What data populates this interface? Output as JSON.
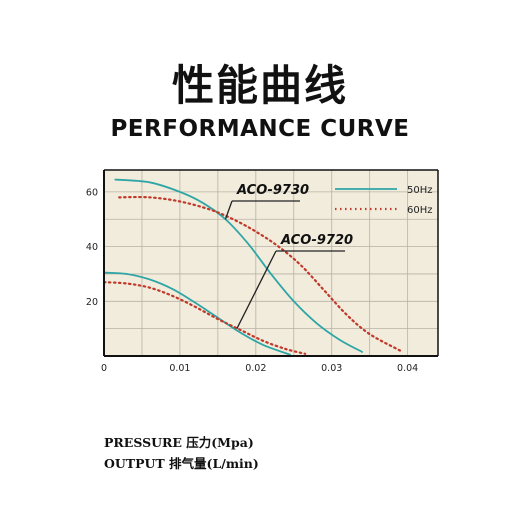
{
  "heading": {
    "title_cn": "性能曲线",
    "title_en": "PERFORMANCE CURVE"
  },
  "footer": {
    "y_label": "PRESSURE 压力(Mpa)",
    "x_label": "OUTPUT 排气量(L/min)"
  },
  "colors": {
    "panel_bg": "#f2ecdc",
    "grid": "#b8b2a6",
    "line_50hz": "#2fa6a6",
    "line_60hz": "#c0392b",
    "frame": "#111111"
  },
  "chart_data": {
    "type": "line",
    "title": "",
    "xlabel": "OUTPUT 排气量(L/min)",
    "ylabel": "PRESSURE 压力(Mpa)",
    "xlim": [
      0,
      0.044
    ],
    "ylim": [
      0,
      68
    ],
    "x_ticks": [
      0,
      0.01,
      0.02,
      0.03,
      0.04
    ],
    "x_tick_labels": [
      "0",
      "0.01",
      "0.02",
      "0.03",
      "0.04"
    ],
    "y_ticks": [
      20,
      40,
      60
    ],
    "y_tick_labels": [
      "20",
      "40",
      "60"
    ],
    "grid": true,
    "legend_position": "top-right",
    "legend": [
      {
        "label": "50Hz",
        "style": "solid",
        "color": "#2fa6a6"
      },
      {
        "label": "60Hz",
        "style": "dotted",
        "color": "#c0392b"
      }
    ],
    "series": [
      {
        "name": "ACO-9730 50Hz",
        "style": "solid",
        "color": "#2fa6a6",
        "x": [
          0.0015,
          0.006,
          0.01,
          0.013,
          0.016,
          0.019,
          0.022,
          0.025,
          0.028,
          0.031,
          0.034
        ],
        "y": [
          64.5,
          63.5,
          60,
          56,
          50,
          41,
          30,
          20,
          12,
          6,
          1.5
        ]
      },
      {
        "name": "ACO-9730 60Hz",
        "style": "dotted",
        "color": "#c0392b",
        "x": [
          0.002,
          0.006,
          0.01,
          0.014,
          0.017,
          0.02,
          0.023,
          0.026,
          0.029,
          0.032,
          0.035,
          0.039
        ],
        "y": [
          58,
          58,
          56.5,
          53.5,
          50,
          45.5,
          40,
          33,
          24,
          15,
          8,
          2
        ]
      },
      {
        "name": "ACO-9720 50Hz",
        "style": "solid",
        "color": "#2fa6a6",
        "x": [
          0,
          0.003,
          0.006,
          0.009,
          0.012,
          0.015,
          0.018,
          0.021,
          0.0245
        ],
        "y": [
          30.5,
          30,
          28,
          24.5,
          19.5,
          14,
          8.5,
          4,
          0.5
        ]
      },
      {
        "name": "ACO-9720 60Hz",
        "style": "dotted",
        "color": "#c0392b",
        "x": [
          0,
          0.003,
          0.006,
          0.009,
          0.012,
          0.015,
          0.018,
          0.021,
          0.024,
          0.0265
        ],
        "y": [
          27,
          26.5,
          25,
          22,
          18,
          13.5,
          9.5,
          5.5,
          2.5,
          0.8
        ]
      }
    ],
    "annotations": [
      {
        "text": "ACO-9730",
        "points_to": [
          0.016,
          50
        ]
      },
      {
        "text": "ACO-9720",
        "points_to": [
          0.0175,
          10
        ]
      }
    ]
  }
}
